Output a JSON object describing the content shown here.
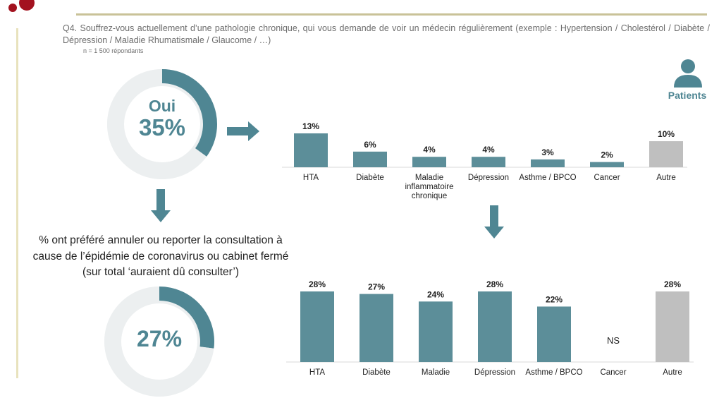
{
  "survey": {
    "question": "Q4. Souffrez-vous actuellement d’une pathologie chronique, qui vous demande de voir un médecin régulièrement (exemple : Hypertension / Cholestérol / Diabète / Dépression / Maladie Rhumatismale / Glaucome / …)",
    "respondents": "n = 1 500 répondants",
    "audience": "Patients",
    "audience_icon": "person-icon"
  },
  "donut_main": {
    "label": "Oui",
    "value_text": "35%"
  },
  "donut_second": {
    "value_text": "27%"
  },
  "statement": "% ont préféré annuler ou reporter la consultation à cause de l’épidémie de coronavirus ou cabinet fermé (sur total ‘auraient dû consulter’)",
  "colors": {
    "accent": "#4f8693",
    "bar": "#5c8e99",
    "other_bar": "#bfbfbf",
    "donut_rest": "#eceff0",
    "rule": "#c9c298",
    "logo": "#a3121f"
  },
  "chart_data": [
    {
      "type": "pie",
      "categories": [
        "Oui",
        ""
      ],
      "values": [
        35,
        65
      ]
    },
    {
      "type": "bar",
      "categories": [
        "HTA",
        "Diabète",
        "Maladie inflammatoire chronique",
        "Dépression",
        "Asthme / BPCO",
        "Cancer",
        "Autre"
      ],
      "values": [
        13,
        6,
        4,
        4,
        3,
        2,
        10
      ],
      "labels": [
        "13%",
        "6%",
        "4%",
        "4%",
        "3%",
        "2%",
        "10%"
      ],
      "ylim": [
        0,
        13
      ]
    },
    {
      "type": "pie",
      "categories": [
        "",
        ""
      ],
      "values": [
        27,
        73
      ]
    },
    {
      "type": "bar",
      "categories": [
        "HTA",
        "Diabète",
        "Maladie",
        "Dépression",
        "Asthme / BPCO",
        "Cancer",
        "Autre"
      ],
      "values": [
        28,
        27,
        24,
        28,
        22,
        null,
        28
      ],
      "labels": [
        "28%",
        "27%",
        "24%",
        "28%",
        "22%",
        "NS",
        "28%"
      ],
      "ylim": [
        0,
        28
      ]
    }
  ]
}
